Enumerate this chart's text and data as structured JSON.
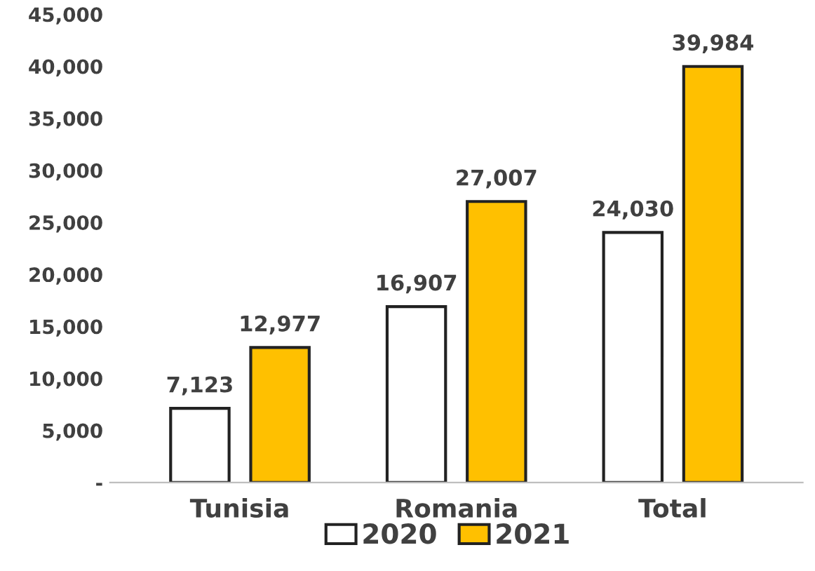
{
  "chart_data": {
    "type": "bar",
    "categories": [
      "Tunisia",
      "Romania",
      "Total"
    ],
    "series": [
      {
        "name": "2020",
        "color": "#ffffff",
        "values": [
          7123,
          16907,
          24030
        ],
        "value_labels": [
          "7,123",
          "16,907",
          "24,030"
        ]
      },
      {
        "name": "2021",
        "color": "#ffc000",
        "values": [
          12977,
          27007,
          39984
        ],
        "value_labels": [
          "12,977",
          "27,007",
          "39,984"
        ]
      }
    ],
    "ylim": [
      0,
      45000
    ],
    "yticks": [
      {
        "value": 0,
        "label": "-"
      },
      {
        "value": 5000,
        "label": "5,000"
      },
      {
        "value": 10000,
        "label": "10,000"
      },
      {
        "value": 15000,
        "label": "15,000"
      },
      {
        "value": 20000,
        "label": "20,000"
      },
      {
        "value": 25000,
        "label": "25,000"
      },
      {
        "value": 30000,
        "label": "30,000"
      },
      {
        "value": 35000,
        "label": "35,000"
      },
      {
        "value": 40000,
        "label": "40,000"
      },
      {
        "value": 45000,
        "label": "45,000"
      }
    ],
    "grid": false,
    "legend": "bottom"
  }
}
